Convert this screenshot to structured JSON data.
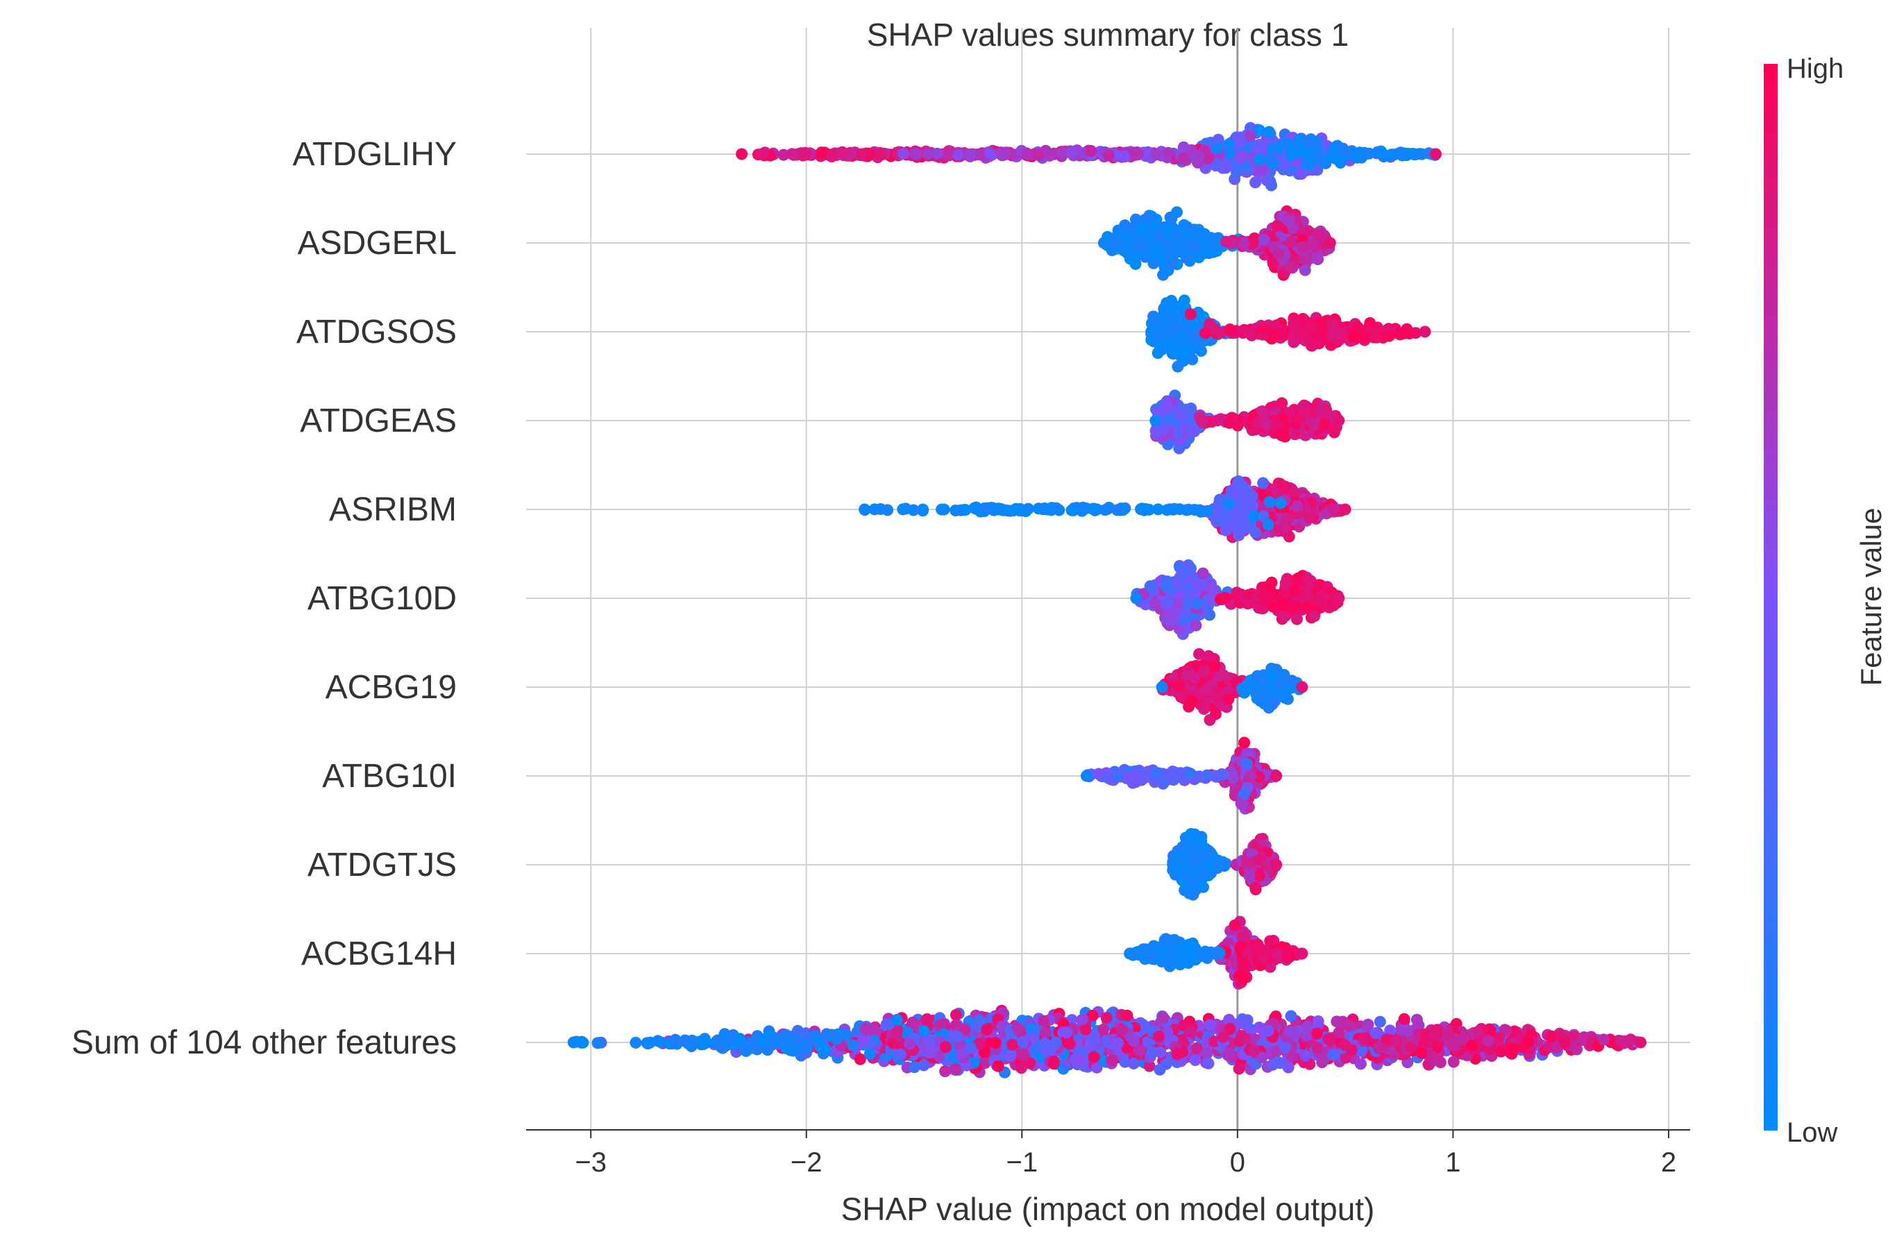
{
  "chart_data": {
    "type": "scatter",
    "title": "SHAP values summary for class 1",
    "xlabel": "SHAP value (impact on model output)",
    "ylabel": "",
    "xlim": [
      -3.3,
      2.1
    ],
    "xticks": [
      -3,
      -2,
      -1,
      0,
      1,
      2
    ],
    "xtick_labels": [
      "−3",
      "−2",
      "−1",
      "0",
      "1",
      "2"
    ],
    "grid": true,
    "zero_line": 0,
    "features": [
      {
        "name": "ATDGLIHY",
        "range": [
          -2.3,
          0.92
        ],
        "clusters": [
          {
            "c": 0.13,
            "w": 0.2,
            "amp": 1.0,
            "n": 220,
            "fmin": 0.15,
            "fmax": 0.55
          },
          {
            "c": -1.6,
            "w": 0.55,
            "amp": 0.09,
            "n": 170,
            "fmin": 0.75,
            "fmax": 1.0
          },
          {
            "c": -0.65,
            "w": 0.45,
            "amp": 0.1,
            "n": 130,
            "fmin": 0.5,
            "fmax": 0.78
          },
          {
            "c": 0.6,
            "w": 0.28,
            "amp": 0.08,
            "n": 80,
            "fmin": 0.0,
            "fmax": 0.12
          }
        ]
      },
      {
        "name": "ASDGERL",
        "range": [
          -0.62,
          0.43
        ],
        "clusters": [
          {
            "c": -0.35,
            "w": 0.15,
            "amp": 1.0,
            "n": 260,
            "fmin": 0.0,
            "fmax": 0.12
          },
          {
            "c": 0.25,
            "w": 0.1,
            "amp": 1.0,
            "n": 240,
            "fmin": 0.6,
            "fmax": 1.0
          }
        ]
      },
      {
        "name": "ATDGSOS",
        "range": [
          -0.4,
          0.87
        ],
        "clusters": [
          {
            "c": -0.28,
            "w": 0.1,
            "amp": 1.0,
            "n": 240,
            "fmin": 0.0,
            "fmax": 0.12
          },
          {
            "c": 0.38,
            "w": 0.22,
            "amp": 0.45,
            "n": 240,
            "fmin": 0.85,
            "fmax": 1.0
          }
        ]
      },
      {
        "name": "ATDGEAS",
        "range": [
          -0.38,
          0.47
        ],
        "clusters": [
          {
            "c": -0.3,
            "w": 0.07,
            "amp": 1.0,
            "n": 170,
            "fmin": 0.2,
            "fmax": 0.65
          },
          {
            "c": 0.28,
            "w": 0.18,
            "amp": 0.55,
            "n": 220,
            "fmin": 0.8,
            "fmax": 1.0
          }
        ]
      },
      {
        "name": "ASRIBM",
        "range": [
          -1.73,
          0.5
        ],
        "clusters": [
          {
            "c": 0.18,
            "w": 0.14,
            "amp": 1.0,
            "n": 280,
            "fmin": 0.65,
            "fmax": 1.0
          },
          {
            "c": -0.02,
            "w": 0.06,
            "amp": 0.7,
            "n": 70,
            "fmin": 0.3,
            "fmax": 0.45
          },
          {
            "c": -1.0,
            "w": 0.5,
            "amp": 0.08,
            "n": 110,
            "fmin": 0.0,
            "fmax": 0.1
          }
        ]
      },
      {
        "name": "ATBG10D",
        "range": [
          -0.47,
          0.47
        ],
        "clusters": [
          {
            "c": -0.25,
            "w": 0.11,
            "amp": 1.0,
            "n": 240,
            "fmin": 0.2,
            "fmax": 0.7
          },
          {
            "c": 0.27,
            "w": 0.14,
            "amp": 0.7,
            "n": 220,
            "fmin": 0.85,
            "fmax": 1.0
          }
        ]
      },
      {
        "name": "ACBG19",
        "range": [
          -0.35,
          0.3
        ],
        "clusters": [
          {
            "c": -0.15,
            "w": 0.1,
            "amp": 1.0,
            "n": 220,
            "fmin": 0.8,
            "fmax": 1.0
          },
          {
            "c": 0.17,
            "w": 0.06,
            "amp": 0.7,
            "n": 100,
            "fmin": 0.0,
            "fmax": 0.15
          }
        ]
      },
      {
        "name": "ATBG10I",
        "range": [
          -0.7,
          0.18
        ],
        "clusters": [
          {
            "c": 0.04,
            "w": 0.05,
            "amp": 1.0,
            "n": 180,
            "fmin": 0.55,
            "fmax": 1.0
          },
          {
            "c": -0.4,
            "w": 0.18,
            "amp": 0.25,
            "n": 110,
            "fmin": 0.2,
            "fmax": 0.5
          }
        ]
      },
      {
        "name": "ATDGTJS",
        "range": [
          -0.3,
          0.18
        ],
        "clusters": [
          {
            "c": -0.2,
            "w": 0.06,
            "amp": 1.0,
            "n": 200,
            "fmin": 0.0,
            "fmax": 0.12
          },
          {
            "c": 0.1,
            "w": 0.04,
            "amp": 0.9,
            "n": 150,
            "fmin": 0.6,
            "fmax": 1.0
          }
        ]
      },
      {
        "name": "ACBG14H",
        "range": [
          -0.5,
          0.3
        ],
        "clusters": [
          {
            "c": 0.0,
            "w": 0.04,
            "amp": 1.0,
            "n": 130,
            "fmin": 0.55,
            "fmax": 0.9
          },
          {
            "c": 0.15,
            "w": 0.08,
            "amp": 0.45,
            "n": 100,
            "fmin": 0.85,
            "fmax": 1.0
          },
          {
            "c": -0.3,
            "w": 0.1,
            "amp": 0.5,
            "n": 120,
            "fmin": 0.0,
            "fmax": 0.12
          }
        ]
      },
      {
        "name": "Sum of 104 other features",
        "range": [
          -3.08,
          1.87
        ],
        "clusters": [
          {
            "c": -1.2,
            "w": 0.55,
            "amp": 1.0,
            "n": 650,
            "fmin": 0.0,
            "fmax": 1.0
          },
          {
            "c": 0.2,
            "w": 0.7,
            "amp": 0.85,
            "n": 650,
            "fmin": 0.3,
            "fmax": 1.0
          },
          {
            "c": 1.2,
            "w": 0.35,
            "amp": 0.3,
            "n": 180,
            "fmin": 0.75,
            "fmax": 1.0
          },
          {
            "c": -2.3,
            "w": 0.25,
            "amp": 0.2,
            "n": 90,
            "fmin": 0.0,
            "fmax": 0.15
          },
          {
            "c": -3.05,
            "w": 0.02,
            "amp": 0.05,
            "n": 4,
            "fmin": 0.0,
            "fmax": 0.05
          }
        ]
      }
    ],
    "colorbar": {
      "label": "Feature value",
      "high_label": "High",
      "low_label": "Low",
      "low_color": "#008bfb",
      "mid_color": "#7c52ff",
      "high_color": "#ff0052"
    }
  }
}
